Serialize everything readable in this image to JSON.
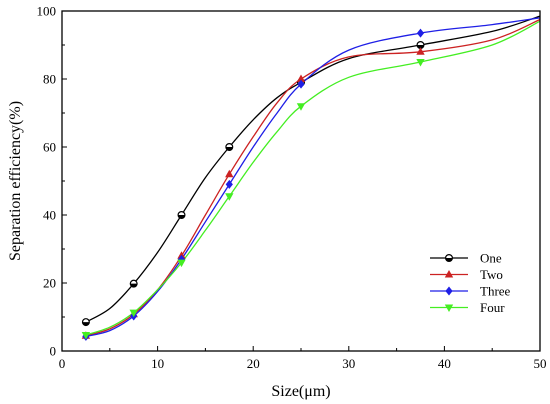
{
  "chart_data": {
    "type": "line",
    "xlabel": "Size(μm)",
    "ylabel": "Separation efficiency(%)",
    "xlim": [
      0,
      50
    ],
    "ylim": [
      0,
      100
    ],
    "xticks": [
      "0",
      "10",
      "20",
      "30",
      "40",
      "50"
    ],
    "yticks": [
      "0",
      "20",
      "40",
      "60",
      "80",
      "100"
    ],
    "grid": false,
    "legend_position": "bottom-right",
    "series": [
      {
        "name": "One",
        "color": "#000000",
        "marker": "circle-open",
        "points": [
          [
            2.5,
            8.5
          ],
          [
            7.5,
            19.8
          ],
          [
            12.5,
            40
          ],
          [
            17.5,
            60
          ],
          [
            25,
            79
          ],
          [
            37.5,
            90
          ]
        ],
        "curve": [
          [
            2.5,
            8.5
          ],
          [
            5,
            12.5
          ],
          [
            7.5,
            19.8
          ],
          [
            10,
            29
          ],
          [
            12.5,
            40
          ],
          [
            15,
            51
          ],
          [
            17.5,
            60
          ],
          [
            20,
            68
          ],
          [
            22.5,
            74.5
          ],
          [
            25,
            79
          ],
          [
            30,
            86
          ],
          [
            37.5,
            90
          ],
          [
            45,
            94
          ],
          [
            50,
            98.5
          ]
        ]
      },
      {
        "name": "Two",
        "color": "#cc2222",
        "marker": "triangle",
        "points": [
          [
            2.5,
            4.5
          ],
          [
            7.5,
            10.8
          ],
          [
            12.5,
            28
          ],
          [
            17.5,
            52
          ],
          [
            25,
            80
          ],
          [
            37.5,
            88
          ]
        ],
        "curve": [
          [
            2.5,
            4.5
          ],
          [
            5,
            6.5
          ],
          [
            7.5,
            10.8
          ],
          [
            10,
            18
          ],
          [
            12.5,
            28
          ],
          [
            15,
            40
          ],
          [
            17.5,
            52
          ],
          [
            20,
            63
          ],
          [
            22.5,
            73
          ],
          [
            25,
            80
          ],
          [
            30,
            86.5
          ],
          [
            37.5,
            88
          ],
          [
            45,
            91.5
          ],
          [
            50,
            97.5
          ]
        ]
      },
      {
        "name": "Three",
        "color": "#1f1fe6",
        "marker": "diamond",
        "points": [
          [
            2.5,
            4.3
          ],
          [
            7.5,
            10.3
          ],
          [
            12.5,
            27
          ],
          [
            17.5,
            49
          ],
          [
            25,
            78.5
          ],
          [
            37.5,
            93.5
          ]
        ],
        "curve": [
          [
            2.5,
            4.3
          ],
          [
            5,
            6
          ],
          [
            7.5,
            10.3
          ],
          [
            10,
            17.5
          ],
          [
            12.5,
            27
          ],
          [
            15,
            38
          ],
          [
            17.5,
            49
          ],
          [
            20,
            60
          ],
          [
            22.5,
            70
          ],
          [
            25,
            78.5
          ],
          [
            30,
            88.5
          ],
          [
            37.5,
            93.5
          ],
          [
            45,
            96
          ],
          [
            50,
            98
          ]
        ]
      },
      {
        "name": "Four",
        "color": "#44ee22",
        "marker": "triangle-down",
        "points": [
          [
            2.5,
            4.7
          ],
          [
            7.5,
            11.3
          ],
          [
            12.5,
            26
          ],
          [
            17.5,
            45.5
          ],
          [
            25,
            72
          ],
          [
            37.5,
            85
          ]
        ],
        "curve": [
          [
            2.5,
            4.7
          ],
          [
            5,
            7
          ],
          [
            7.5,
            11.3
          ],
          [
            10,
            18
          ],
          [
            12.5,
            26
          ],
          [
            15,
            35.5
          ],
          [
            17.5,
            45.5
          ],
          [
            20,
            55.5
          ],
          [
            22.5,
            64.5
          ],
          [
            25,
            72
          ],
          [
            30,
            80.5
          ],
          [
            37.5,
            85
          ],
          [
            45,
            90
          ],
          [
            50,
            97
          ]
        ]
      }
    ]
  }
}
